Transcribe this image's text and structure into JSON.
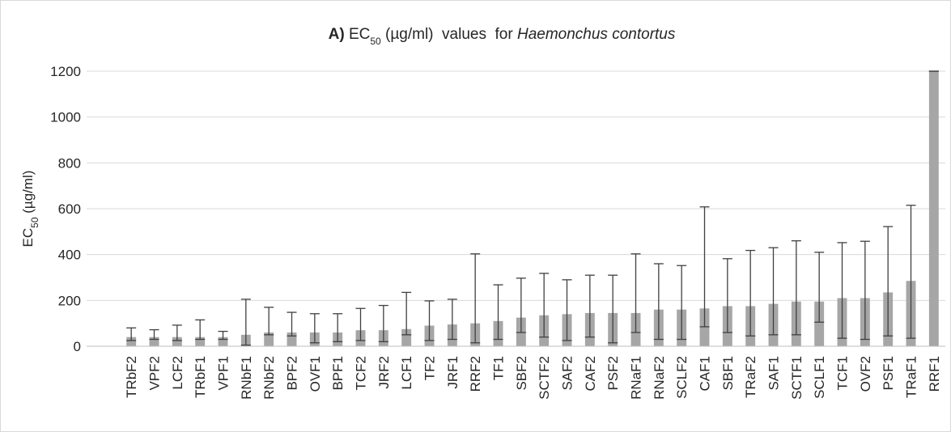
{
  "chart_data": {
    "type": "bar",
    "title": {
      "prefix": "A)",
      "main": "EC",
      "sub": "50",
      "rest": " (µg/ml)  values  for ",
      "species": "Haemonchus contortus"
    },
    "ylabel": {
      "main": "EC",
      "sub": "50",
      "rest": " (µg/ml)"
    },
    "categories": [
      "TRbF2",
      "VPF2",
      "LCF2",
      "TRbF1",
      "VPF1",
      "RNbF1",
      "RNbF2",
      "BPF2",
      "OVF1",
      "BPF1",
      "TCF2",
      "JRF2",
      "LCF1",
      "TF2",
      "JRF1",
      "RRF2",
      "TF1",
      "SBF2",
      "SCTF2",
      "SAF2",
      "CAF2",
      "PSF2",
      "RNaF1",
      "RNaF2",
      "SCLF2",
      "CAF1",
      "SBF1",
      "TRaF2",
      "SAF1",
      "SCTF1",
      "SCLF1",
      "TCF1",
      "OVF2",
      "PSF1",
      "TRaF1",
      "RRF1"
    ],
    "values": [
      40,
      40,
      40,
      40,
      40,
      50,
      60,
      60,
      60,
      60,
      70,
      70,
      75,
      90,
      95,
      100,
      110,
      125,
      135,
      140,
      145,
      145,
      145,
      160,
      160,
      165,
      175,
      175,
      185,
      195,
      195,
      210,
      210,
      235,
      285,
      1200
    ],
    "lower": [
      25,
      30,
      25,
      30,
      30,
      5,
      50,
      45,
      15,
      20,
      25,
      20,
      50,
      25,
      30,
      15,
      30,
      60,
      40,
      25,
      40,
      15,
      60,
      30,
      30,
      85,
      60,
      45,
      50,
      50,
      105,
      35,
      30,
      45,
      35,
      1200
    ],
    "upper": [
      80,
      72,
      92,
      115,
      65,
      205,
      170,
      148,
      142,
      142,
      165,
      178,
      235,
      198,
      205,
      403,
      268,
      297,
      318,
      290,
      310,
      310,
      403,
      360,
      352,
      608,
      382,
      418,
      430,
      460,
      410,
      452,
      458,
      522,
      615,
      1200
    ],
    "color": "#a6a6a6",
    "error_color": "#404040",
    "ylim": [
      0,
      1200
    ],
    "yticks": [
      0,
      200,
      400,
      600,
      800,
      1000,
      1200
    ],
    "grid": true
  }
}
